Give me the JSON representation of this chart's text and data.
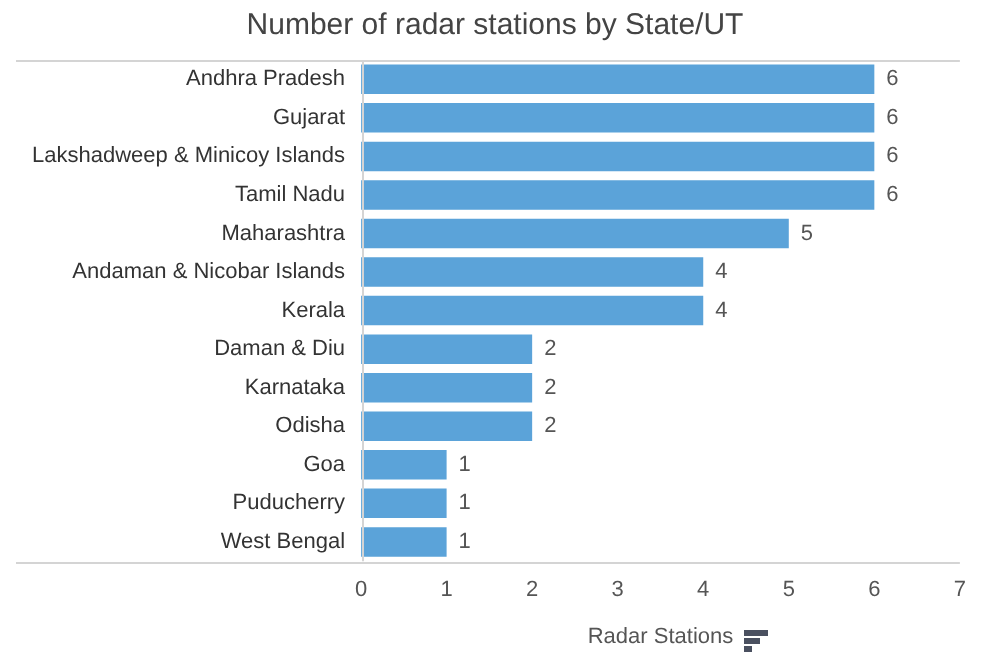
{
  "chart_data": {
    "type": "bar",
    "orientation": "horizontal",
    "title": "Number of radar stations by State/UT",
    "xlabel": "Radar Stations",
    "categories": [
      "Andhra Pradesh",
      "Gujarat",
      "Lakshadweep & Minicoy Islands",
      "Tamil Nadu",
      "Maharashtra",
      "Andaman & Nicobar Islands",
      "Kerala",
      "Daman & Diu",
      "Karnataka",
      "Odisha",
      "Goa",
      "Puducherry",
      "West Bengal"
    ],
    "values": [
      6,
      6,
      6,
      6,
      5,
      4,
      4,
      2,
      2,
      2,
      1,
      1,
      1
    ],
    "color": "#5ba3d9",
    "xlim": [
      0,
      7
    ],
    "xticks": [
      0,
      1,
      2,
      3,
      4,
      5,
      6,
      7
    ],
    "grid": false,
    "legend": false,
    "data_labels": true
  }
}
